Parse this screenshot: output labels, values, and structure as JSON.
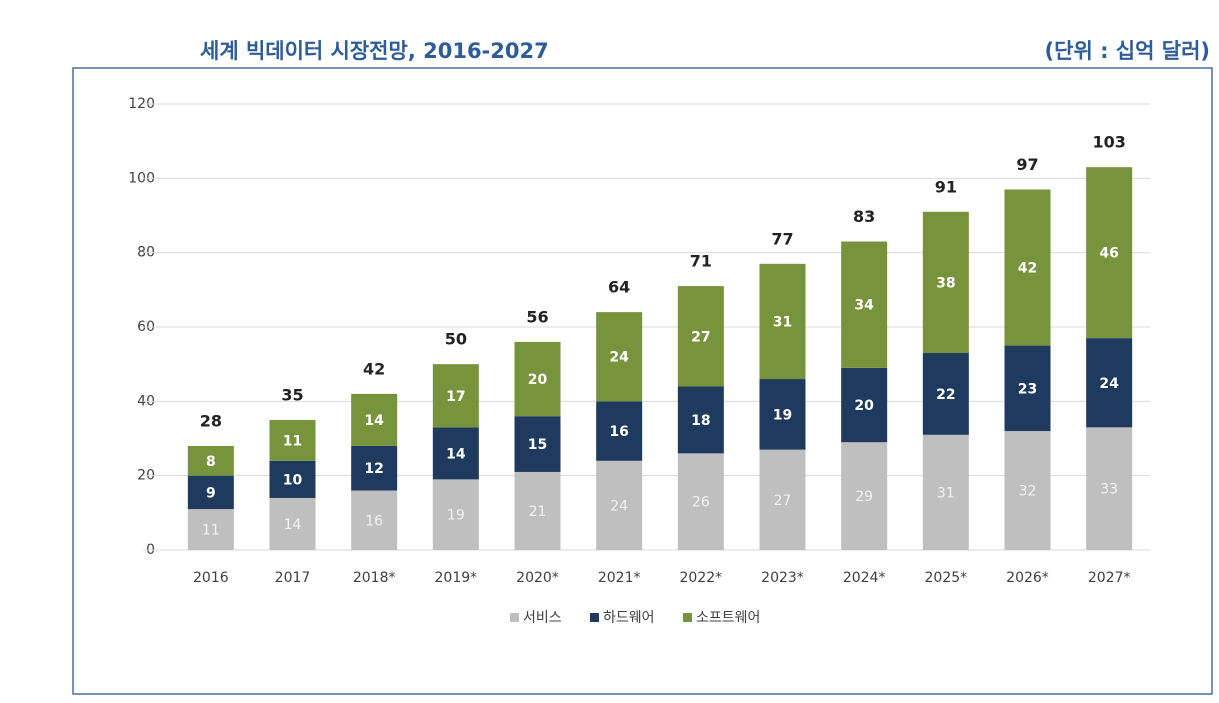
{
  "chart_data": {
    "type": "stacked_bar",
    "title": "세계 빅데이터 시장전망, 2016-2027",
    "subtitle": "(단위 : 십억 달러)",
    "categories": [
      "2016",
      "2017",
      "2018*",
      "2019*",
      "2020*",
      "2021*",
      "2022*",
      "2023*",
      "2024*",
      "2025*",
      "2026*",
      "2027*"
    ],
    "series": [
      {
        "name": "서비스",
        "color": "#bfbfbf",
        "values": [
          11,
          14,
          16,
          19,
          21,
          24,
          26,
          27,
          29,
          31,
          32,
          33
        ]
      },
      {
        "name": "하드웨어",
        "color": "#1f3a5f",
        "values": [
          9,
          10,
          12,
          14,
          15,
          16,
          18,
          19,
          20,
          22,
          23,
          24
        ]
      },
      {
        "name": "소프트웨어",
        "color": "#77933c",
        "values": [
          8,
          11,
          14,
          17,
          20,
          24,
          27,
          31,
          34,
          38,
          42,
          46
        ]
      }
    ],
    "totals": [
      28,
      35,
      42,
      50,
      56,
      64,
      71,
      77,
      83,
      91,
      97,
      103
    ],
    "ylim": [
      0,
      120
    ],
    "yticks": [
      0,
      20,
      40,
      60,
      80,
      100,
      120
    ],
    "grid": true
  }
}
